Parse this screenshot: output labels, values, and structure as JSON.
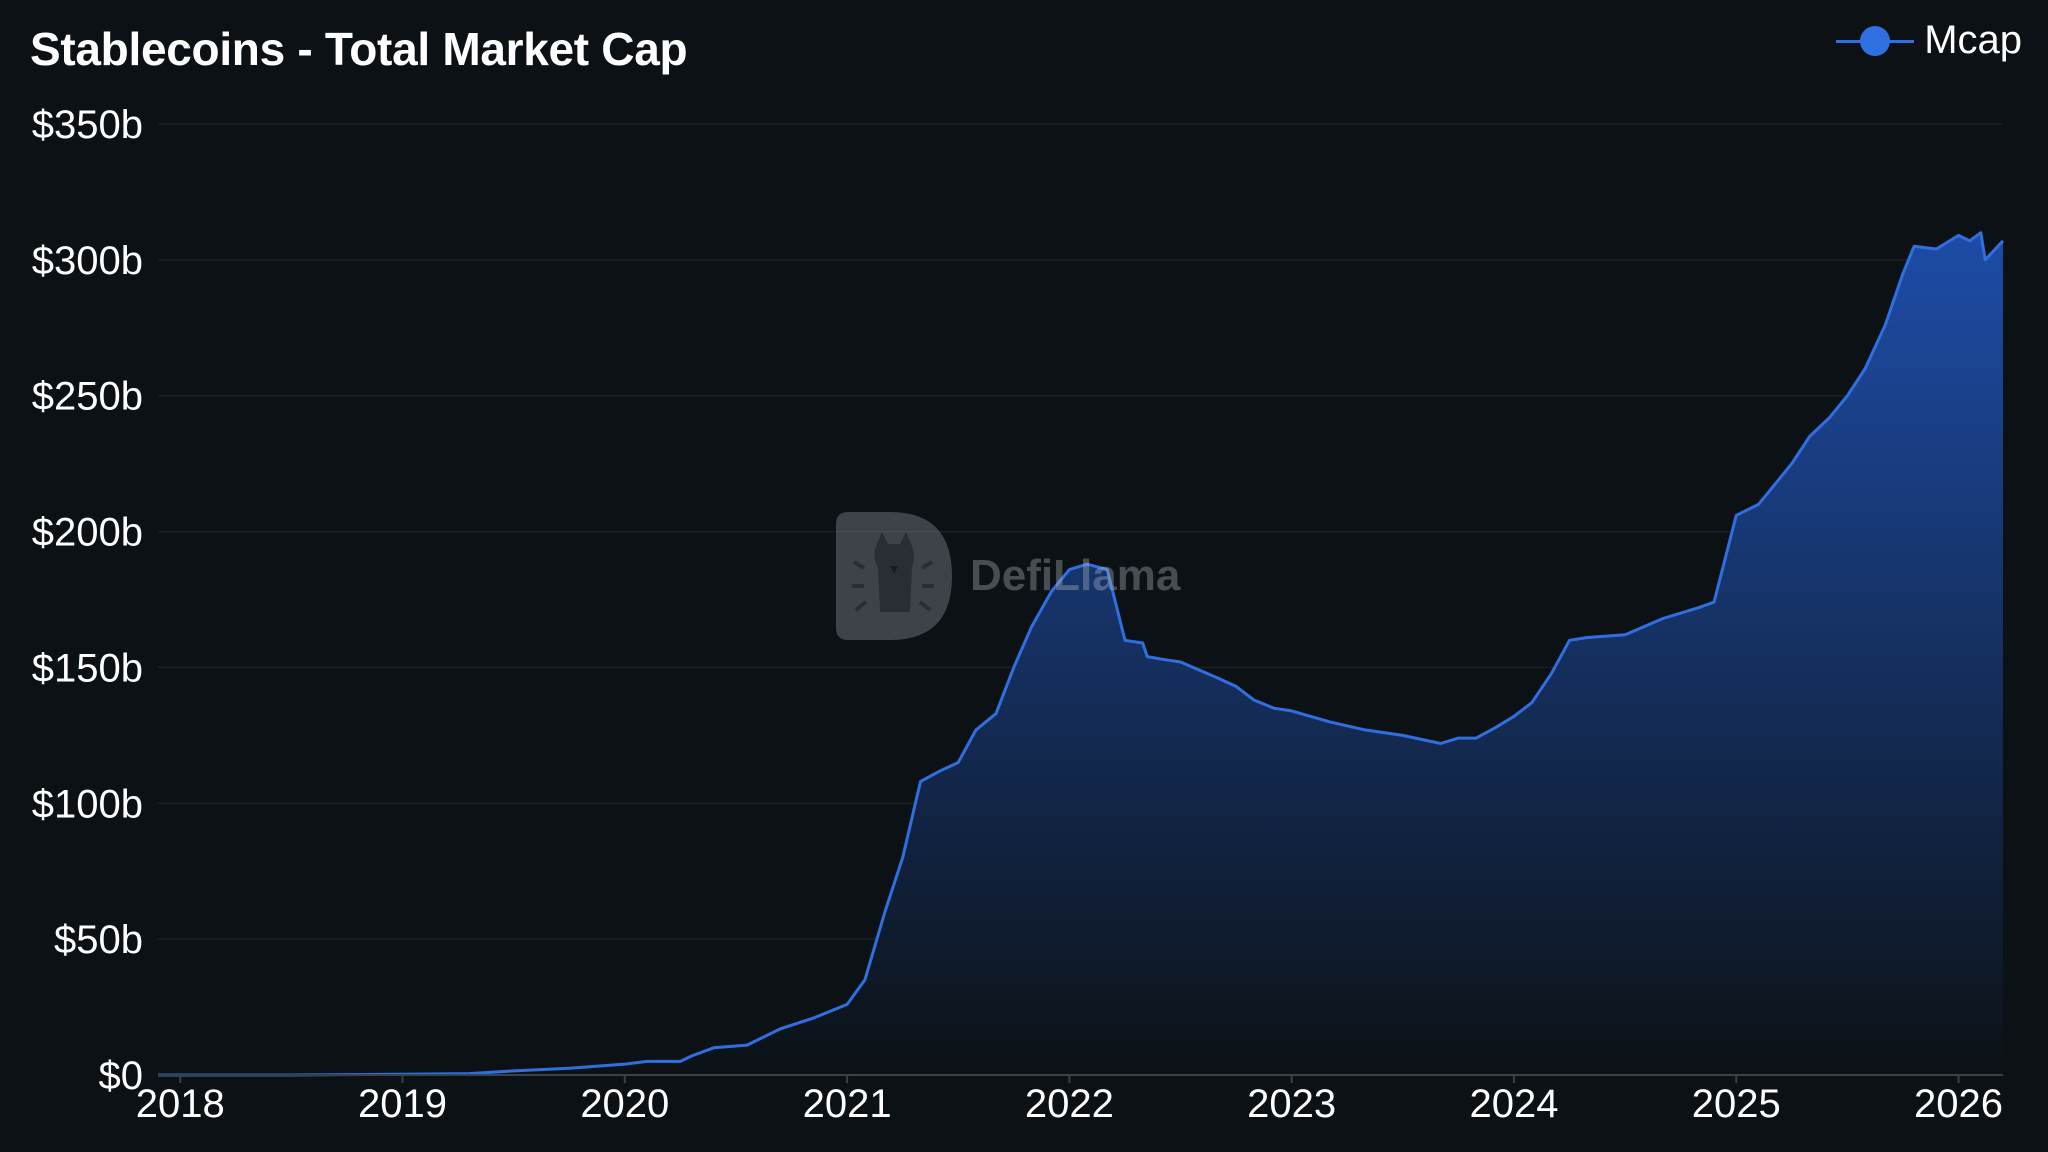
{
  "title": "Stablecoins - Total Market Cap",
  "watermark": "DefiLlama",
  "legend": {
    "label": "Mcap"
  },
  "colors": {
    "background": "#0c1115",
    "line": "#2f6fe0",
    "fill_top": "#1e4fae",
    "fill_bottom": "#0c1115",
    "grid": "#1a2026"
  },
  "chart_data": {
    "type": "area",
    "title": "Stablecoins - Total Market Cap",
    "xlabel": "",
    "ylabel": "",
    "ylim": [
      0,
      350
    ],
    "xlim": [
      2017.9,
      2026.2
    ],
    "grid": true,
    "legend_position": "top-right",
    "y_ticks": [
      {
        "value": 0,
        "label": "$0"
      },
      {
        "value": 50,
        "label": "$50b"
      },
      {
        "value": 100,
        "label": "$100b"
      },
      {
        "value": 150,
        "label": "$150b"
      },
      {
        "value": 200,
        "label": "$200b"
      },
      {
        "value": 250,
        "label": "$250b"
      },
      {
        "value": 300,
        "label": "$300b"
      },
      {
        "value": 350,
        "label": "$350b"
      }
    ],
    "x_ticks": [
      {
        "value": 2018,
        "label": "2018"
      },
      {
        "value": 2019,
        "label": "2019"
      },
      {
        "value": 2020,
        "label": "2020"
      },
      {
        "value": 2021,
        "label": "2021"
      },
      {
        "value": 2022,
        "label": "2022"
      },
      {
        "value": 2023,
        "label": "2023"
      },
      {
        "value": 2024,
        "label": "2024"
      },
      {
        "value": 2025,
        "label": "2025"
      },
      {
        "value": 2026,
        "label": "2026"
      }
    ],
    "series": [
      {
        "name": "Mcap",
        "x": [
          2017.9,
          2018.0,
          2018.5,
          2019.0,
          2019.3,
          2019.5,
          2019.75,
          2020.0,
          2020.1,
          2020.25,
          2020.3,
          2020.4,
          2020.55,
          2020.7,
          2020.85,
          2021.0,
          2021.08,
          2021.17,
          2021.25,
          2021.33,
          2021.42,
          2021.5,
          2021.58,
          2021.67,
          2021.75,
          2021.83,
          2021.92,
          2022.0,
          2022.08,
          2022.17,
          2022.25,
          2022.33,
          2022.35,
          2022.42,
          2022.5,
          2022.67,
          2022.75,
          2022.83,
          2022.92,
          2023.0,
          2023.17,
          2023.33,
          2023.5,
          2023.67,
          2023.75,
          2023.83,
          2023.92,
          2024.0,
          2024.08,
          2024.17,
          2024.25,
          2024.33,
          2024.5,
          2024.67,
          2024.83,
          2024.9,
          2025.0,
          2025.1,
          2025.25,
          2025.33,
          2025.42,
          2025.5,
          2025.58,
          2025.67,
          2025.75,
          2025.8,
          2025.9,
          2026.0,
          2026.05,
          2026.1,
          2026.12,
          2026.2
        ],
        "values": [
          0,
          0,
          0,
          0.3,
          0.5,
          1.5,
          2.5,
          4,
          5,
          5,
          7,
          10,
          11,
          17,
          21,
          26,
          35,
          60,
          80,
          108,
          112,
          115,
          127,
          133,
          150,
          165,
          178,
          186,
          188,
          186,
          160,
          159,
          154,
          153,
          152,
          146,
          143,
          138,
          135,
          134,
          130,
          127,
          125,
          122,
          124,
          124,
          128,
          132,
          137,
          148,
          160,
          161,
          162,
          168,
          172,
          174,
          206,
          210,
          225,
          235,
          242,
          250,
          260,
          276,
          295,
          305,
          304,
          309,
          307,
          310,
          300,
          307
        ]
      }
    ]
  }
}
